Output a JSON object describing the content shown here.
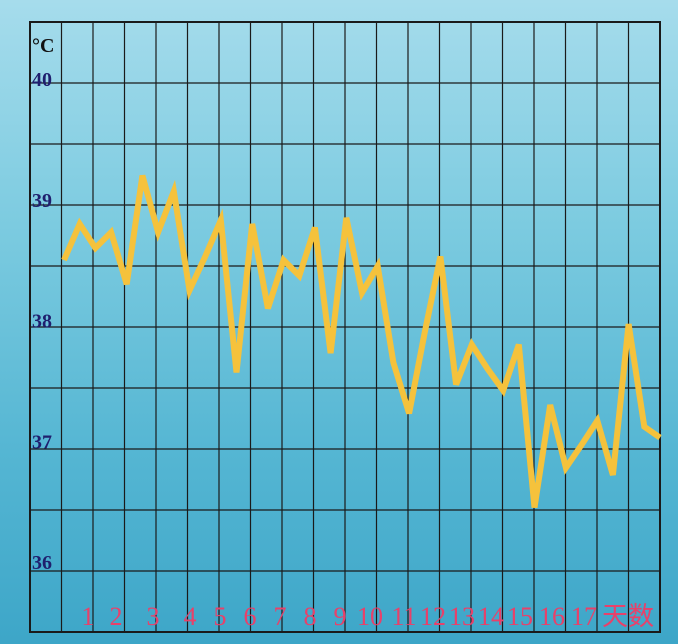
{
  "chart_data": {
    "type": "line",
    "unit_label": "°C",
    "x_axis_label": "天数",
    "y_ticks": [
      "40",
      "39",
      "38",
      "37",
      "36"
    ],
    "x_tick_labels": [
      "1",
      "2",
      "3",
      "4",
      "5",
      "6",
      "7",
      "8",
      "9",
      "10",
      "11",
      "12",
      "13",
      "14",
      "15",
      "16",
      "17"
    ],
    "ylim": [
      35.9,
      40.5
    ],
    "grid": true,
    "series": [
      {
        "values": [
          38.55,
          38.85,
          38.65,
          38.78,
          38.35,
          39.25,
          38.78,
          39.12,
          38.3,
          38.58,
          38.88,
          37.62,
          38.85,
          38.15,
          38.55,
          38.42,
          38.82,
          37.78,
          38.9,
          38.28,
          38.5,
          37.7,
          37.28,
          37.95,
          38.58,
          37.52,
          37.85,
          37.65,
          37.47,
          37.85,
          36.5,
          37.35,
          36.83,
          37.02,
          37.22,
          36.77,
          38.02,
          37.17,
          37.08
        ]
      }
    ],
    "colors": {
      "line": "#f5c23c",
      "grid": "#1a1a1a",
      "y_tick_text": "#1f1f6e",
      "x_tick_text": "#e8416a",
      "unit_text": "#111111"
    }
  }
}
